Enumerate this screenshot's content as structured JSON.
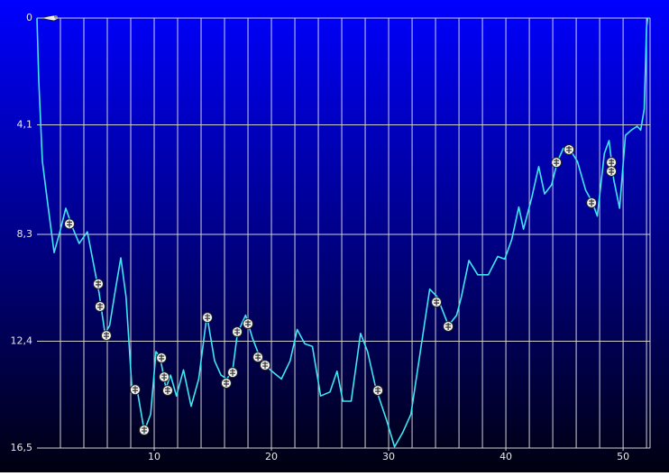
{
  "chart_data": {
    "type": "line",
    "color": "#3fe6f2",
    "grid": true,
    "y_inverted": true,
    "xlim": [
      0,
      52.3
    ],
    "ylim": [
      0,
      16.5
    ],
    "xticks": [
      10,
      20,
      30,
      40,
      50
    ],
    "x_minor_ticks": [
      2,
      4,
      6,
      8,
      10,
      12,
      14,
      16,
      18,
      20,
      22,
      24,
      26,
      28,
      30,
      32,
      34,
      36,
      38,
      40,
      42,
      44,
      46,
      48,
      50,
      52
    ],
    "yticks": [
      0,
      {
        "value": 4.1,
        "label": "4,1"
      },
      {
        "value": 8.3,
        "label": "8,3"
      },
      {
        "value": 12.4,
        "label": "12,4"
      },
      {
        "value": 16.5,
        "label": "16,5"
      }
    ],
    "x": [
      0,
      0.15,
      0.46,
      0.85,
      1.46,
      1.9,
      2.46,
      3,
      3.6,
      4.3,
      4.85,
      5.3,
      5.8,
      6.2,
      6.7,
      7.15,
      7.6,
      8.1,
      8.6,
      9.15,
      9.7,
      10.15,
      10.5,
      11,
      11.4,
      11.9,
      12.5,
      13.15,
      13.8,
      14.5,
      15.15,
      15.7,
      16.2,
      16.7,
      17.1,
      17.8,
      18.4,
      19,
      19.9,
      20.85,
      21.6,
      22.2,
      22.85,
      23.5,
      24.2,
      25,
      25.6,
      26.1,
      26.8,
      27.6,
      28.2,
      28.9,
      29.8,
      30.5,
      31.2,
      31.9,
      32.7,
      33.5,
      34.15,
      35.1,
      35.8,
      36.2,
      36.85,
      37.6,
      38.5,
      39.3,
      39.9,
      40.5,
      41.1,
      41.5,
      42.2,
      42.8,
      43.3,
      43.9,
      44.4,
      44.9,
      45.4,
      46.1,
      46.8,
      47.4,
      47.8,
      48.4,
      48.8,
      49.2,
      49.7,
      50.2,
      50.7,
      51.2,
      51.5,
      51.8,
      52,
      52.1
    ],
    "values": [
      0,
      2.4,
      5.5,
      6.9,
      9.0,
      8.3,
      7.3,
      8.0,
      8.65,
      8.2,
      9.5,
      10.55,
      12.1,
      11.8,
      10.4,
      9.2,
      10.7,
      14.2,
      14.4,
      15.85,
      15.2,
      12.8,
      13.0,
      14.2,
      13.7,
      14.5,
      13.5,
      14.9,
      13.85,
      11.4,
      13.15,
      13.7,
      13.85,
      13.5,
      12.1,
      11.4,
      12.3,
      13.0,
      13.5,
      13.85,
      13.15,
      11.95,
      12.5,
      12.6,
      14.5,
      14.35,
      13.55,
      14.7,
      14.7,
      12.1,
      12.8,
      14.2,
      15.4,
      16.45,
      15.9,
      15.2,
      12.8,
      10.4,
      10.7,
      11.8,
      11.4,
      10.7,
      9.3,
      9.85,
      9.85,
      9.15,
      9.25,
      8.5,
      7.25,
      8.1,
      6.9,
      5.7,
      6.75,
      6.4,
      5.5,
      5.0,
      5.0,
      5.5,
      6.6,
      7.1,
      7.6,
      5.2,
      4.7,
      6.2,
      7.3,
      4.5,
      4.3,
      4.15,
      4.3,
      3.5,
      0.35,
      0
    ],
    "events": {
      "x": [
        2.77,
        5.23,
        5.38,
        5.92,
        8.38,
        9.15,
        10.62,
        10.85,
        11.15,
        14.54,
        16.15,
        16.69,
        17.08,
        18,
        18.85,
        19.46,
        29.08,
        34.08,
        35.08,
        44.31,
        45.38,
        47.31,
        49,
        49
      ],
      "values": [
        7.9,
        10.2,
        11.07,
        12.18,
        14.26,
        15.81,
        13.04,
        13.77,
        14.29,
        11.49,
        14.01,
        13.6,
        12.04,
        11.73,
        13.01,
        13.32,
        14.29,
        10.9,
        11.83,
        5.54,
        5.05,
        7.09,
        5.54,
        5.88
      ]
    }
  }
}
